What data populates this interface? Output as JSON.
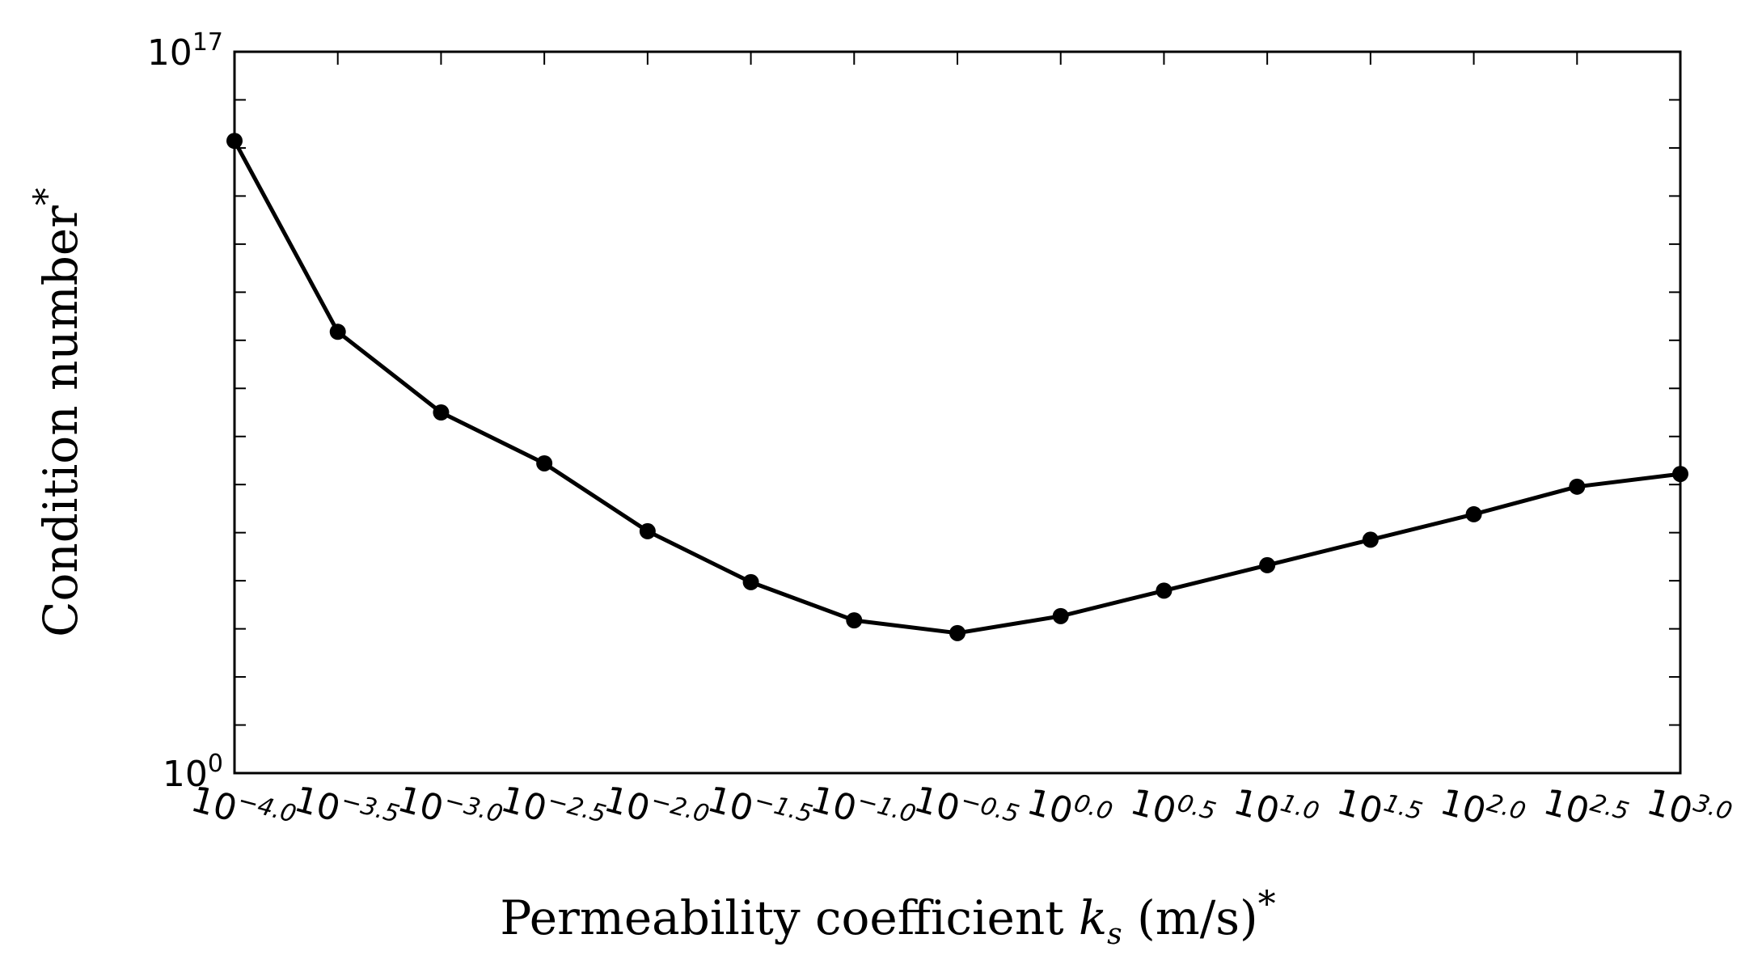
{
  "chart_data": {
    "type": "line",
    "title": "",
    "xlabel": "Permeability coefficient",
    "xlabel_symbol": "k",
    "xlabel_symbol_sub": "s",
    "xlabel_unit": "(m/s)",
    "xlabel_suffix": "*",
    "ylabel": "Condition number",
    "ylabel_suffix": "*",
    "x_scale": "log10",
    "y_scale": "log10",
    "xlim": [
      0.0001,
      1000
    ],
    "ylim": [
      1,
      1e+17
    ],
    "x_tick_base": "10",
    "x_tick_exponents": [
      "−4.0",
      "−3.5",
      "−3.0",
      "−2.5",
      "−2.0",
      "−1.5",
      "−1.0",
      "−0.5",
      "0.0",
      "0.5",
      "1.0",
      "1.5",
      "2.0",
      "2.5",
      "3.0"
    ],
    "y_tick_base": "10",
    "y_tick_exponents": [
      "0",
      "17"
    ],
    "y_minor_ticks": 15,
    "grid": false,
    "color": "#000000",
    "series": [
      {
        "x_log10": [
          -4.0,
          -3.5,
          -3.0,
          -2.5,
          -2.0,
          -1.5,
          -1.0,
          -0.5,
          0.0,
          0.5,
          1.0,
          1.5,
          2.0,
          2.5,
          3.0
        ],
        "y_log10": [
          14.9,
          10.4,
          8.5,
          7.3,
          5.7,
          4.5,
          3.6,
          3.3,
          3.7,
          4.3,
          4.9,
          5.5,
          6.1,
          6.75,
          7.05
        ]
      }
    ]
  }
}
